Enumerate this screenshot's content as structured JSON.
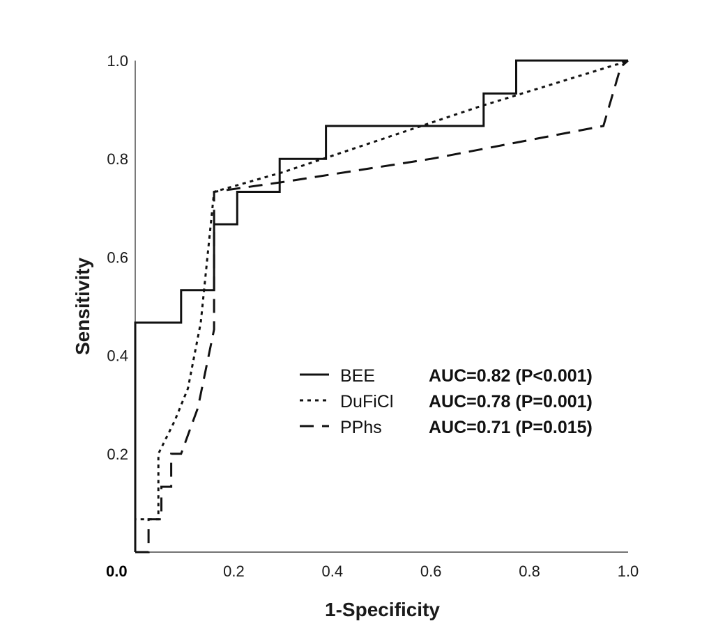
{
  "chart_data": {
    "type": "line",
    "xlabel": "1-Specificity",
    "ylabel": "Sensitivity",
    "xlim": [
      0,
      1
    ],
    "ylim": [
      0,
      1
    ],
    "grid": false,
    "legend_placement": "center-right",
    "origin_label": "0.0",
    "x_ticks": [
      "0.2",
      "0.4",
      "0.6",
      "0.8",
      "1.0"
    ],
    "y_ticks": [
      "0.2",
      "0.4",
      "0.6",
      "0.8",
      "1.0"
    ],
    "series": [
      {
        "name": "BEE",
        "auc_label": "AUC=0.82 (P<0.001)",
        "style": "solid",
        "color": "#111111",
        "points": [
          [
            0,
            0
          ],
          [
            0,
            0.467
          ],
          [
            0.093,
            0.467
          ],
          [
            0.093,
            0.533
          ],
          [
            0.16,
            0.533
          ],
          [
            0.16,
            0.667
          ],
          [
            0.207,
            0.667
          ],
          [
            0.207,
            0.733
          ],
          [
            0.293,
            0.733
          ],
          [
            0.293,
            0.8
          ],
          [
            0.387,
            0.8
          ],
          [
            0.387,
            0.867
          ],
          [
            0.707,
            0.867
          ],
          [
            0.707,
            0.933
          ],
          [
            0.773,
            0.933
          ],
          [
            0.773,
            1.0
          ],
          [
            1.0,
            1.0
          ]
        ]
      },
      {
        "name": "DuFiCl",
        "auc_label": "AUC=0.78 (P=0.001)",
        "style": "dotted",
        "color": "#111111",
        "points": [
          [
            0,
            0
          ],
          [
            0,
            0.067
          ],
          [
            0.047,
            0.067
          ],
          [
            0.047,
            0.2
          ],
          [
            0.08,
            0.267
          ],
          [
            0.107,
            0.333
          ],
          [
            0.133,
            0.467
          ],
          [
            0.16,
            0.733
          ],
          [
            0.3,
            0.773
          ],
          [
            0.5,
            0.84
          ],
          [
            0.7,
            0.907
          ],
          [
            0.98,
            0.993
          ],
          [
            1.0,
            1.0
          ]
        ]
      },
      {
        "name": "PPhs",
        "auc_label": "AUC=0.71 (P=0.015)",
        "style": "dashed",
        "color": "#111111",
        "points": [
          [
            0,
            0
          ],
          [
            0.027,
            0
          ],
          [
            0.027,
            0.067
          ],
          [
            0.053,
            0.067
          ],
          [
            0.053,
            0.133
          ],
          [
            0.073,
            0.133
          ],
          [
            0.073,
            0.2
          ],
          [
            0.093,
            0.2
          ],
          [
            0.127,
            0.293
          ],
          [
            0.16,
            0.453
          ],
          [
            0.16,
            0.733
          ],
          [
            0.3,
            0.753
          ],
          [
            0.6,
            0.8
          ],
          [
            0.95,
            0.867
          ],
          [
            0.985,
            0.987
          ],
          [
            1.0,
            1.0
          ]
        ]
      }
    ]
  }
}
